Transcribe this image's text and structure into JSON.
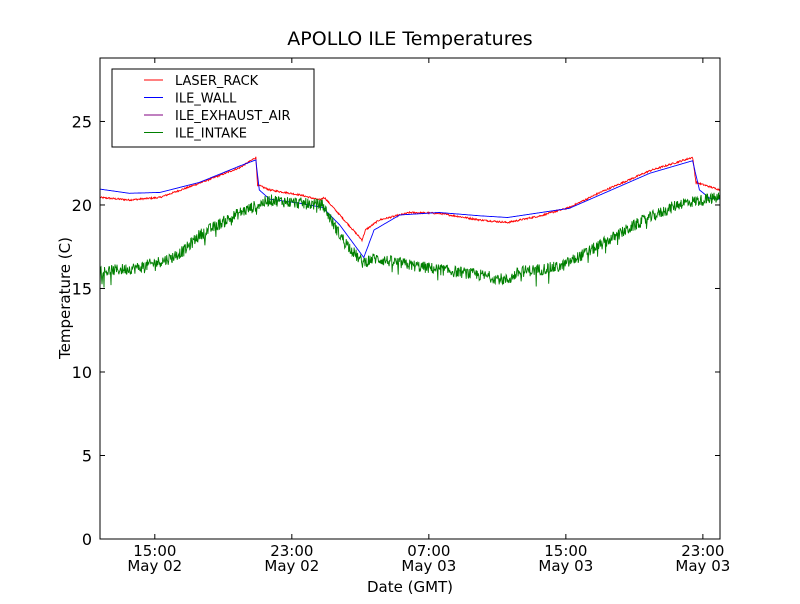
{
  "chart_data": {
    "type": "line",
    "title": "APOLLO ILE Temperatures",
    "xlabel": "Date (GMT)",
    "ylabel": "Temperature (C)",
    "x_units": "hours since May 02 00:00 GMT",
    "xlim": [
      11.8,
      48.0
    ],
    "ylim": [
      0,
      28.8
    ],
    "yticks": [
      0,
      5,
      10,
      15,
      20,
      25
    ],
    "xticks": [
      {
        "x": 15,
        "time": "15:00",
        "date": "May 02"
      },
      {
        "x": 23,
        "time": "23:00",
        "date": "May 02"
      },
      {
        "x": 31,
        "time": "07:00",
        "date": "May 03"
      },
      {
        "x": 39,
        "time": "15:00",
        "date": "May 03"
      },
      {
        "x": 47,
        "time": "23:00",
        "date": "May 03"
      }
    ],
    "grid": false,
    "legend_position": "top-left",
    "series": [
      {
        "name": "LASER_RACK",
        "color": "#ff0000",
        "noise": 0.05,
        "x": [
          11.8,
          13.5,
          15.3,
          17.6,
          20.0,
          20.9,
          21.0,
          21.7,
          23.5,
          24.6,
          24.9,
          25.8,
          27.1,
          27.3,
          28.1,
          29.9,
          31.6,
          34.0,
          35.6,
          37.5,
          39.2,
          41.0,
          43.9,
          46.4,
          46.6,
          48.0
        ],
        "y": [
          20.45,
          20.3,
          20.45,
          21.3,
          22.25,
          22.85,
          21.2,
          20.9,
          20.6,
          20.3,
          20.45,
          19.4,
          17.9,
          18.5,
          19.1,
          19.55,
          19.5,
          19.1,
          18.95,
          19.35,
          19.85,
          20.75,
          22.05,
          22.85,
          21.35,
          20.9
        ]
      },
      {
        "name": "ILE_WALL",
        "color": "#0000ff",
        "noise": 0,
        "x": [
          11.8,
          13.5,
          15.3,
          17.6,
          20.0,
          20.9,
          21.1,
          21.7,
          23.5,
          24.8,
          25.8,
          27.2,
          27.8,
          29.3,
          31.6,
          34.0,
          35.6,
          39.2,
          43.9,
          46.4,
          46.8,
          47.4,
          48.0
        ],
        "y": [
          20.95,
          20.7,
          20.75,
          21.35,
          22.35,
          22.7,
          20.9,
          20.35,
          20.1,
          19.85,
          18.8,
          16.85,
          18.5,
          19.4,
          19.55,
          19.35,
          19.25,
          19.8,
          21.9,
          22.65,
          20.9,
          20.4,
          20.35
        ]
      },
      {
        "name": "ILE_EXHAUST_AIR",
        "color": "#800080",
        "noise": 0,
        "x": [],
        "y": []
      },
      {
        "name": "ILE_INTAKE",
        "color": "#008000",
        "noise": 0.35,
        "x": [
          11.8,
          14.1,
          15.9,
          16.75,
          17.6,
          20.0,
          21.7,
          23.5,
          24.8,
          25.8,
          27.1,
          27.8,
          30.5,
          34.0,
          35.6,
          36.3,
          38.7,
          41.0,
          43.3,
          45.7,
          48.0
        ],
        "y": [
          16.0,
          16.25,
          16.8,
          17.3,
          18.2,
          19.55,
          20.3,
          20.1,
          20.0,
          18.2,
          16.55,
          16.8,
          16.3,
          15.8,
          15.5,
          16.0,
          16.3,
          17.6,
          18.95,
          20.1,
          20.45
        ]
      }
    ]
  }
}
